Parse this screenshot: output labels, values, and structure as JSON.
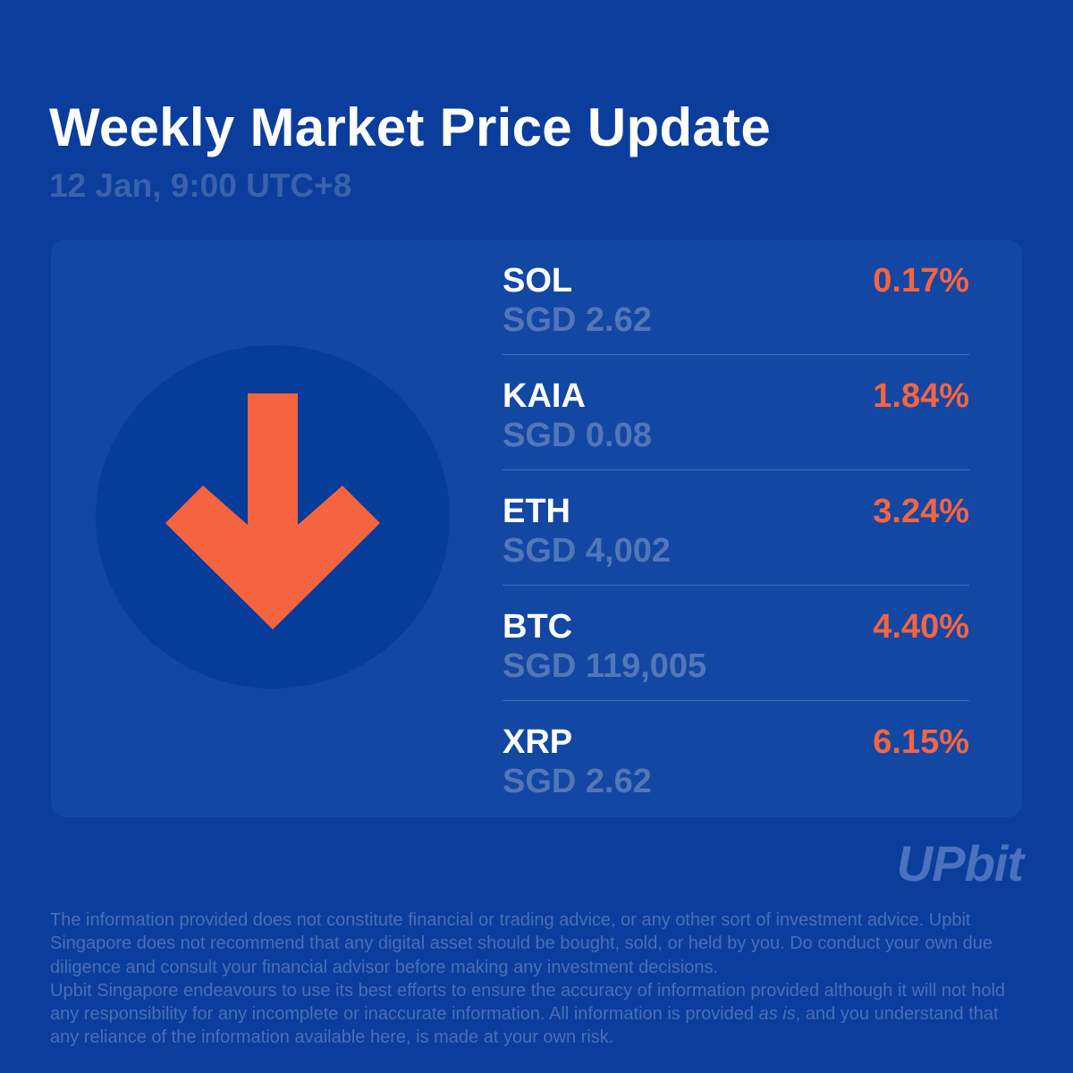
{
  "header": {
    "title": "Weekly Market Price Update",
    "subtitle": "12 Jan, 9:00 UTC+8"
  },
  "indicator": {
    "icon": "arrow-down-icon",
    "color": "#f5643f"
  },
  "assets": [
    {
      "symbol": "SOL",
      "price": "SGD 2.62",
      "change": "0.17%"
    },
    {
      "symbol": "KAIA",
      "price": "SGD 0.08",
      "change": "1.84%"
    },
    {
      "symbol": "ETH",
      "price": "SGD 4,002",
      "change": "3.24%"
    },
    {
      "symbol": "BTC",
      "price": "SGD 119,005",
      "change": "4.40%"
    },
    {
      "symbol": "XRP",
      "price": "SGD 2.62",
      "change": "6.15%"
    }
  ],
  "brand": {
    "logo_text": "UPbit"
  },
  "disclaimer": {
    "p1": "The information provided does not constitute financial or trading advice, or any other sort of investment advice. Upbit Singapore does not recommend that any digital asset should be bought, sold, or held by you. Do conduct your own due diligence and consult your financial advisor before making any investment decisions.",
    "p2_a": "Upbit Singapore endeavours to use its best efforts to ensure the accuracy of information provided although it will not hold any responsibility for any incomplete or inaccurate information. All information is provided ",
    "p2_em": "as is",
    "p2_b": ", and you understand that any reliance of the information available here, is made at your own risk."
  },
  "colors": {
    "background": "#0a3d9c",
    "card": "#1347a4",
    "negative": "#f5643f"
  }
}
